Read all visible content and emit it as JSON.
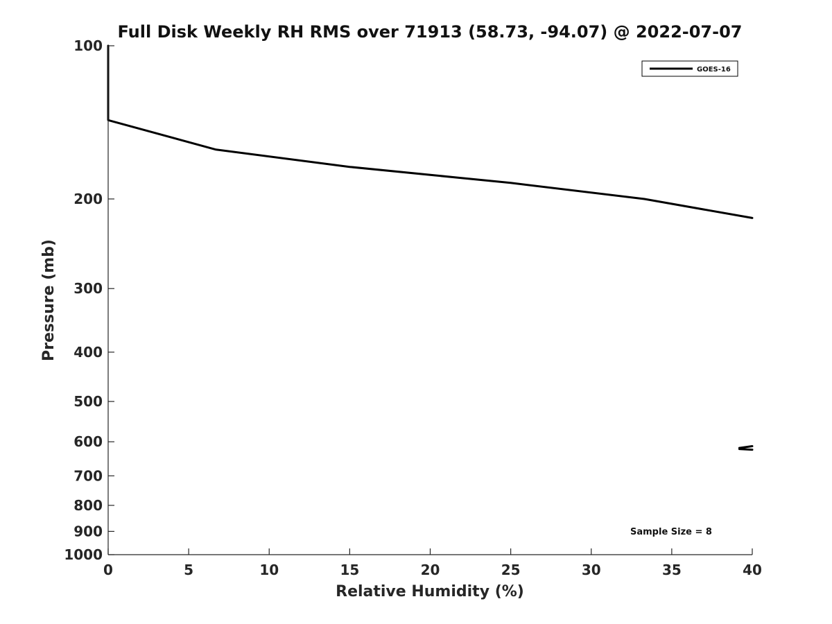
{
  "chart_data": {
    "type": "line",
    "title": "Full Disk Weekly RH RMS over 71913 (58.73, -94.07) @ 2022-07-07",
    "xlabel": "Relative Humidity (%)",
    "ylabel": "Pressure (mb)",
    "xlim": [
      0,
      40
    ],
    "ylim": [
      1000,
      100
    ],
    "y_scale": "log",
    "y_inverted": true,
    "xticks": [
      0,
      5,
      10,
      15,
      20,
      25,
      30,
      35,
      40
    ],
    "yticks": [
      100,
      200,
      300,
      400,
      500,
      600,
      700,
      800,
      900,
      1000
    ],
    "grid": false,
    "legend_position": "top-right",
    "annotation": "Sample Size = 8",
    "series": [
      {
        "name": "GOES-16",
        "color": "#000000",
        "segments": [
          [
            {
              "x": 0.0,
              "y": 100
            },
            {
              "x": 0.0,
              "y": 140
            },
            {
              "x": 6.7,
              "y": 160
            },
            {
              "x": 15.0,
              "y": 173
            },
            {
              "x": 25.0,
              "y": 186
            },
            {
              "x": 33.3,
              "y": 200
            },
            {
              "x": 40.0,
              "y": 218
            }
          ],
          [
            {
              "x": 39.2,
              "y": 617
            },
            {
              "x": 40.0,
              "y": 612
            }
          ],
          [
            {
              "x": 39.2,
              "y": 620
            },
            {
              "x": 40.0,
              "y": 622
            }
          ]
        ]
      }
    ]
  }
}
